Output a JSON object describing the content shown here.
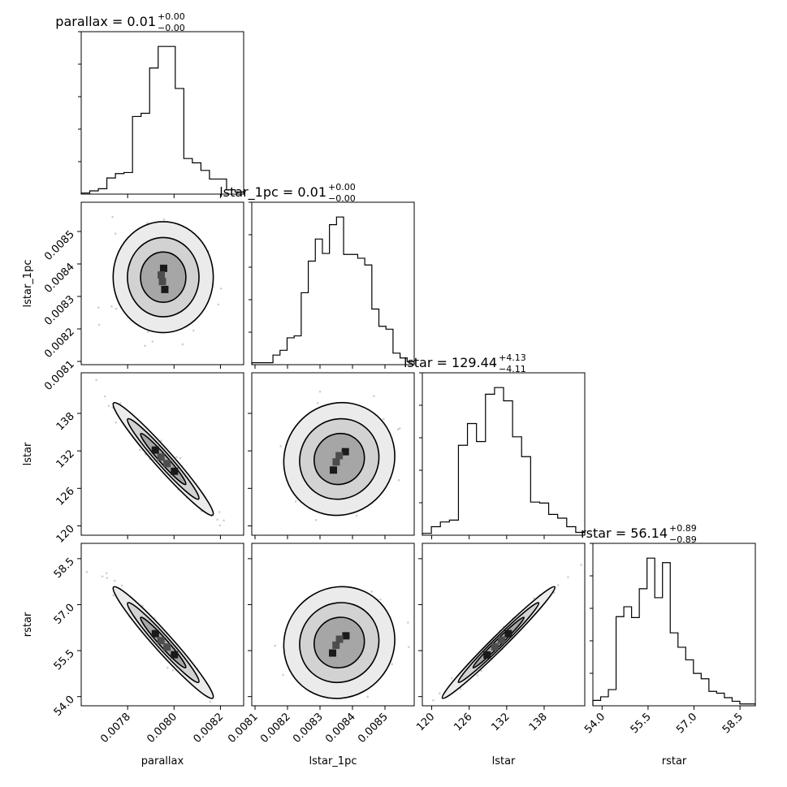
{
  "chart_data": {
    "type": "corner",
    "parameters": [
      "parallax",
      "lstar_1pc",
      "lstar",
      "rstar"
    ],
    "titles": [
      {
        "param": "parallax",
        "median": "0.01",
        "upper": "+0.00",
        "lower": "−0.00"
      },
      {
        "param": "lstar_1pc",
        "median": "0.01",
        "upper": "+0.00",
        "lower": "−0.00"
      },
      {
        "param": "lstar",
        "median": "129.44",
        "upper": "+4.13",
        "lower": "−4.11"
      },
      {
        "param": "rstar",
        "median": "56.14",
        "upper": "+0.89",
        "lower": "−0.89"
      }
    ],
    "ranges": {
      "parallax": [
        0.0076,
        0.0083
      ],
      "lstar_1pc": [
        0.00809,
        0.00859
      ],
      "lstar": [
        118.5,
        144.5
      ],
      "rstar": [
        53.7,
        59.0
      ]
    },
    "ticks": {
      "parallax": [
        "0.0078",
        "0.0080",
        "0.0082"
      ],
      "lstar_1pc": [
        "0.0081",
        "0.0082",
        "0.0083",
        "0.0084",
        "0.0085"
      ],
      "lstar": [
        "120",
        "126",
        "132",
        "138"
      ],
      "rstar": [
        "54.0",
        "55.5",
        "57.0",
        "58.5"
      ]
    },
    "histograms": {
      "parallax": {
        "range": [
          0.0076,
          0.0083
        ],
        "counts": [
          1,
          3,
          5,
          15,
          19,
          20,
          72,
          75,
          117,
          137,
          137,
          98,
          33,
          29,
          22,
          14,
          14,
          4,
          2
        ]
      },
      "lstar_1pc": {
        "range": [
          0.00809,
          0.00859
        ],
        "counts": [
          2,
          2,
          2,
          10,
          15,
          28,
          30,
          75,
          108,
          131,
          116,
          146,
          154,
          115,
          115,
          111,
          104,
          58,
          40,
          37,
          12,
          7,
          3
        ]
      },
      "lstar": {
        "range": [
          118.5,
          144.5
        ],
        "counts": [
          2,
          9,
          14,
          16,
          95,
          118,
          99,
          149,
          156,
          142,
          104,
          83,
          35,
          34,
          22,
          18,
          9,
          3
        ]
      },
      "rstar": {
        "range": [
          53.7,
          59.0
        ],
        "counts": [
          6,
          10,
          18,
          99,
          110,
          98,
          130,
          164,
          120,
          159,
          81,
          65,
          51,
          36,
          30,
          16,
          14,
          9,
          5,
          2,
          2
        ]
      }
    },
    "correlations": [
      {
        "x": "lstar_1pc",
        "y": "parallax",
        "rho": 0.0
      },
      {
        "x": "lstar",
        "y": "parallax",
        "rho": -0.97
      },
      {
        "x": "rstar",
        "y": "parallax",
        "rho": -0.97
      },
      {
        "x": "lstar",
        "y": "lstar_1pc",
        "rho": 0.05
      },
      {
        "x": "rstar",
        "y": "lstar_1pc",
        "rho": 0.05
      },
      {
        "x": "rstar",
        "y": "lstar",
        "rho": 0.999
      }
    ],
    "grid": false,
    "legend": "none"
  }
}
